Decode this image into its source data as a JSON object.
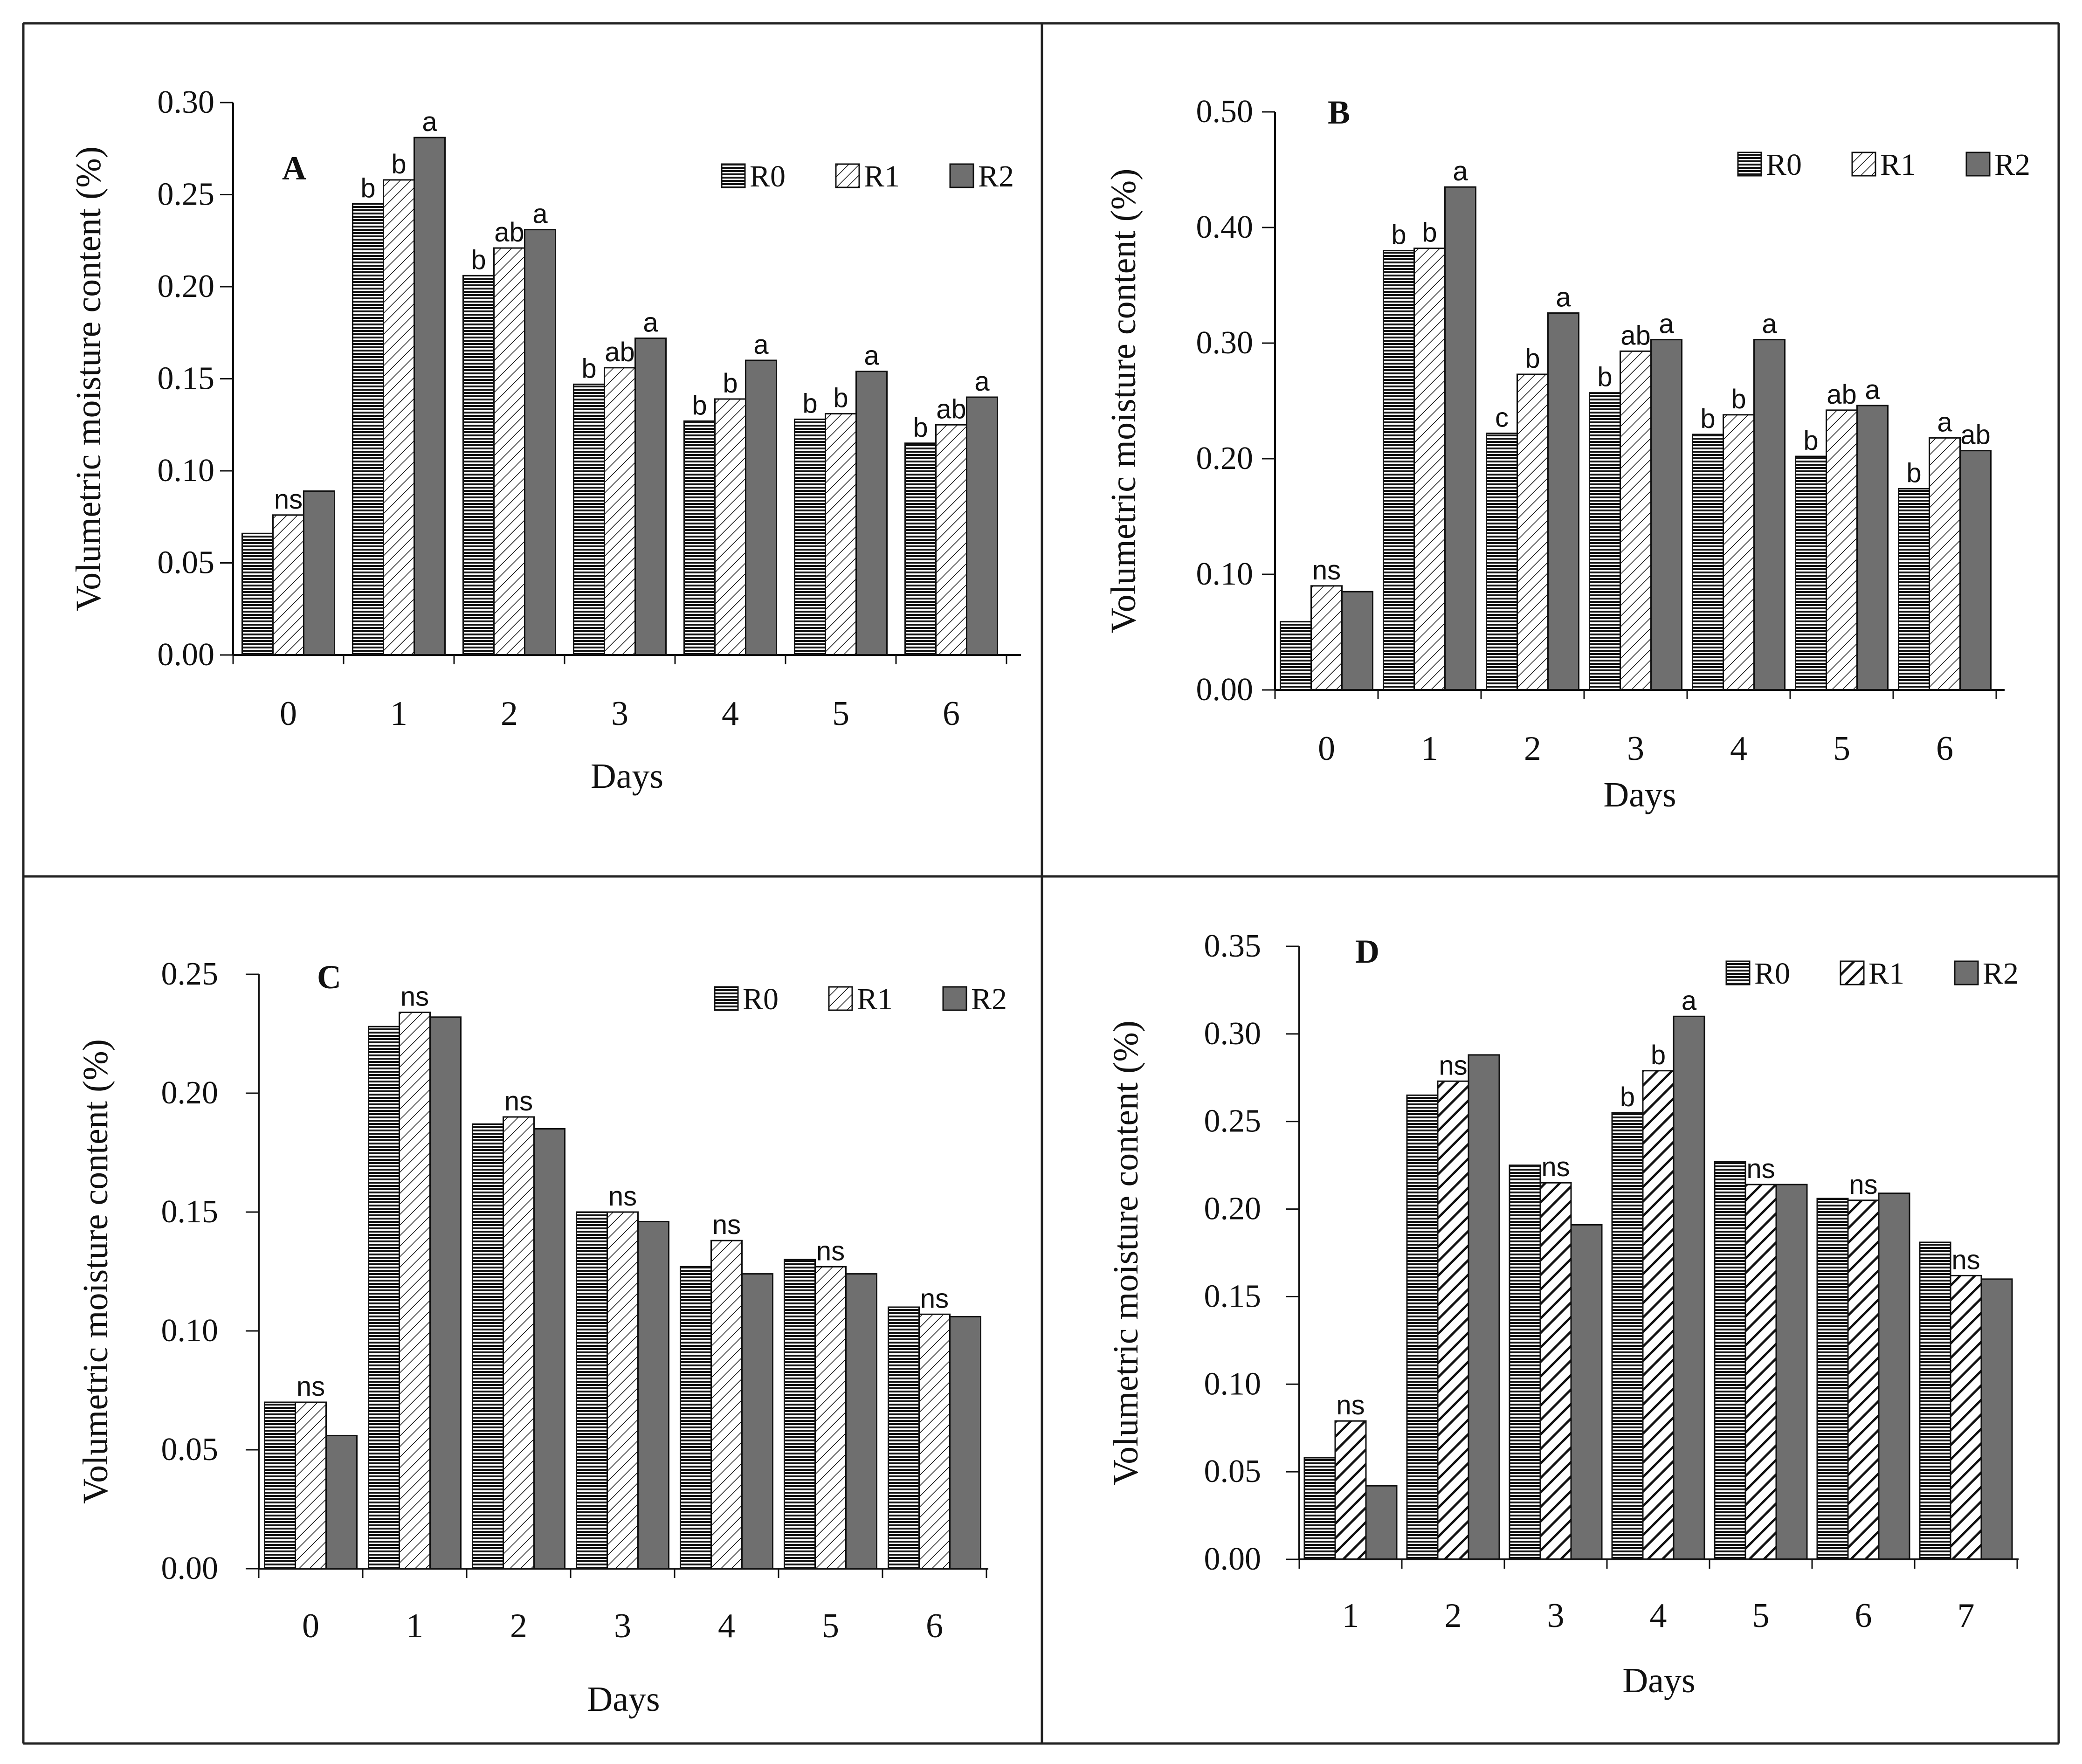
{
  "legend_labels": [
    "R0",
    "R1",
    "R2"
  ],
  "colors": {
    "r2_fill": "#6f6f6f",
    "stroke": "#111111",
    "panel_border": "#222222"
  },
  "chart_data": [
    {
      "panel": "A",
      "type": "bar",
      "ylabel": "Volumetric moisture content (%)",
      "xlabel": "Days",
      "categories": [
        "0",
        "1",
        "2",
        "3",
        "4",
        "5",
        "6"
      ],
      "ylim": [
        0,
        0.3
      ],
      "yticks": [
        "0.00",
        "0.05",
        "0.10",
        "0.15",
        "0.20",
        "0.25",
        "0.30"
      ],
      "legend_position": "top-right",
      "r1_pattern": "diagonal",
      "series": [
        {
          "name": "R0",
          "values": [
            0.066,
            0.245,
            0.206,
            0.147,
            0.127,
            0.128,
            0.115
          ]
        },
        {
          "name": "R1",
          "values": [
            0.076,
            0.258,
            0.221,
            0.156,
            0.139,
            0.131,
            0.125
          ]
        },
        {
          "name": "R2",
          "values": [
            0.089,
            0.281,
            0.231,
            0.172,
            0.16,
            0.154,
            0.14
          ]
        }
      ],
      "annotations": [
        {
          "category": 0,
          "series": 1,
          "text": "ns"
        },
        {
          "category": 1,
          "series": 0,
          "text": "b"
        },
        {
          "category": 1,
          "series": 1,
          "text": "b"
        },
        {
          "category": 1,
          "series": 2,
          "text": "a"
        },
        {
          "category": 2,
          "series": 0,
          "text": "b"
        },
        {
          "category": 2,
          "series": 1,
          "text": "ab"
        },
        {
          "category": 2,
          "series": 2,
          "text": "a"
        },
        {
          "category": 3,
          "series": 0,
          "text": "b"
        },
        {
          "category": 3,
          "series": 1,
          "text": "ab"
        },
        {
          "category": 3,
          "series": 2,
          "text": "a"
        },
        {
          "category": 4,
          "series": 0,
          "text": "b"
        },
        {
          "category": 4,
          "series": 1,
          "text": "b"
        },
        {
          "category": 4,
          "series": 2,
          "text": "a"
        },
        {
          "category": 5,
          "series": 0,
          "text": "b"
        },
        {
          "category": 5,
          "series": 1,
          "text": "b"
        },
        {
          "category": 5,
          "series": 2,
          "text": "a"
        },
        {
          "category": 6,
          "series": 0,
          "text": "b"
        },
        {
          "category": 6,
          "series": 1,
          "text": "ab"
        },
        {
          "category": 6,
          "series": 2,
          "text": "a"
        }
      ]
    },
    {
      "panel": "B",
      "type": "bar",
      "ylabel": "Volumetric moisture content (%)",
      "xlabel": "Days",
      "categories": [
        "0",
        "1",
        "2",
        "3",
        "4",
        "5",
        "6"
      ],
      "ylim": [
        0,
        0.5
      ],
      "yticks": [
        "0.00",
        "0.10",
        "0.20",
        "0.30",
        "0.40",
        "0.50"
      ],
      "legend_position": "top-right",
      "r1_pattern": "diagonal",
      "series": [
        {
          "name": "R0",
          "values": [
            0.059,
            0.38,
            0.222,
            0.257,
            0.221,
            0.202,
            0.174
          ]
        },
        {
          "name": "R1",
          "values": [
            0.09,
            0.382,
            0.273,
            0.293,
            0.238,
            0.242,
            0.218
          ]
        },
        {
          "name": "R2",
          "values": [
            0.085,
            0.435,
            0.326,
            0.303,
            0.303,
            0.246,
            0.207
          ]
        }
      ],
      "annotations": [
        {
          "category": 0,
          "series": 1,
          "text": "ns"
        },
        {
          "category": 1,
          "series": 0,
          "text": "b"
        },
        {
          "category": 1,
          "series": 1,
          "text": "b"
        },
        {
          "category": 1,
          "series": 2,
          "text": "a"
        },
        {
          "category": 2,
          "series": 0,
          "text": "c"
        },
        {
          "category": 2,
          "series": 1,
          "text": "b"
        },
        {
          "category": 2,
          "series": 2,
          "text": "a"
        },
        {
          "category": 3,
          "series": 0,
          "text": "b"
        },
        {
          "category": 3,
          "series": 1,
          "text": "ab"
        },
        {
          "category": 3,
          "series": 2,
          "text": "a"
        },
        {
          "category": 4,
          "series": 0,
          "text": "b"
        },
        {
          "category": 4,
          "series": 1,
          "text": "b"
        },
        {
          "category": 4,
          "series": 2,
          "text": "a"
        },
        {
          "category": 5,
          "series": 0,
          "text": "b"
        },
        {
          "category": 5,
          "series": 1,
          "text": "ab"
        },
        {
          "category": 5,
          "series": 2,
          "text": "a"
        },
        {
          "category": 6,
          "series": 0,
          "text": "b"
        },
        {
          "category": 6,
          "series": 1,
          "text": "a"
        },
        {
          "category": 6,
          "series": 2,
          "text": "ab"
        }
      ]
    },
    {
      "panel": "C",
      "type": "bar",
      "ylabel": "Volumetric moisture content (%)",
      "xlabel": "Days",
      "categories": [
        "0",
        "1",
        "2",
        "3",
        "4",
        "5",
        "6"
      ],
      "ylim": [
        0,
        0.25
      ],
      "yticks": [
        "0.00",
        "0.05",
        "0.10",
        "0.15",
        "0.20",
        "0.25"
      ],
      "legend_position": "top-right",
      "r1_pattern": "diagonal",
      "series": [
        {
          "name": "R0",
          "values": [
            0.07,
            0.228,
            0.187,
            0.15,
            0.127,
            0.13,
            0.11
          ]
        },
        {
          "name": "R1",
          "values": [
            0.07,
            0.234,
            0.19,
            0.15,
            0.138,
            0.127,
            0.107
          ]
        },
        {
          "name": "R2",
          "values": [
            0.056,
            0.232,
            0.185,
            0.146,
            0.124,
            0.124,
            0.106
          ]
        }
      ],
      "annotations": [
        {
          "category": 0,
          "series": 1,
          "text": "ns"
        },
        {
          "category": 1,
          "series": 1,
          "text": "ns"
        },
        {
          "category": 2,
          "series": 1,
          "text": "ns"
        },
        {
          "category": 3,
          "series": 1,
          "text": "ns"
        },
        {
          "category": 4,
          "series": 1,
          "text": "ns"
        },
        {
          "category": 5,
          "series": 1,
          "text": "ns"
        },
        {
          "category": 6,
          "series": 1,
          "text": "ns"
        }
      ]
    },
    {
      "panel": "D",
      "type": "bar",
      "ylabel": "Volumetric moisture content (%)",
      "xlabel": "Days",
      "categories": [
        "1",
        "2",
        "3",
        "4",
        "5",
        "6",
        "7"
      ],
      "ylim": [
        0,
        0.35
      ],
      "yticks": [
        "0.00",
        "0.05",
        "0.10",
        "0.15",
        "0.20",
        "0.25",
        "0.30",
        "0.35"
      ],
      "legend_position": "top-right",
      "r1_pattern": "bold-diagonal",
      "series": [
        {
          "name": "R0",
          "values": [
            0.058,
            0.265,
            0.225,
            0.255,
            0.227,
            0.206,
            0.181
          ]
        },
        {
          "name": "R1",
          "values": [
            0.079,
            0.273,
            0.215,
            0.279,
            0.214,
            0.205,
            0.162
          ]
        },
        {
          "name": "R2",
          "values": [
            0.042,
            0.288,
            0.191,
            0.31,
            0.214,
            0.209,
            0.16
          ]
        }
      ],
      "annotations": [
        {
          "category": 0,
          "series": 1,
          "text": "ns"
        },
        {
          "category": 1,
          "series": 1,
          "text": "ns"
        },
        {
          "category": 2,
          "series": 1,
          "text": "ns"
        },
        {
          "category": 3,
          "series": 0,
          "text": "b"
        },
        {
          "category": 3,
          "series": 1,
          "text": "b"
        },
        {
          "category": 3,
          "series": 2,
          "text": "a"
        },
        {
          "category": 4,
          "series": 1,
          "text": "ns"
        },
        {
          "category": 5,
          "series": 1,
          "text": "ns"
        },
        {
          "category": 6,
          "series": 1,
          "text": "ns"
        }
      ]
    }
  ]
}
